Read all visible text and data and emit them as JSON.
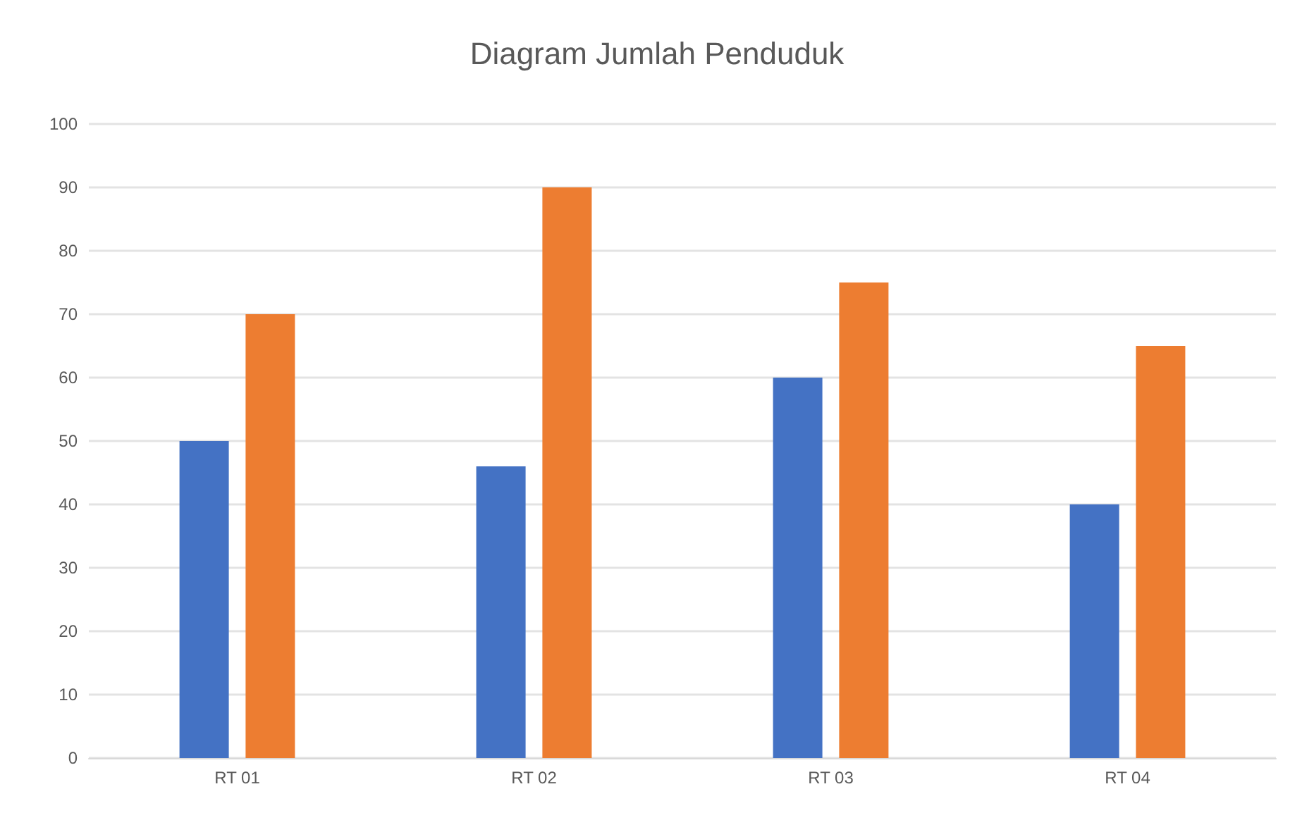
{
  "chart_data": {
    "type": "bar",
    "title": "Diagram Jumlah Penduduk",
    "categories": [
      "RT 01",
      "RT 02",
      "RT 03",
      "RT 04"
    ],
    "series": [
      {
        "color": "#4472c4",
        "values": [
          50,
          46,
          60,
          40
        ]
      },
      {
        "color": "#ed7d31",
        "values": [
          70,
          90,
          75,
          65
        ]
      }
    ],
    "ylim": [
      0,
      100
    ],
    "yticks": [
      0,
      10,
      20,
      30,
      40,
      50,
      60,
      70,
      80,
      90,
      100
    ],
    "grid": "y"
  }
}
